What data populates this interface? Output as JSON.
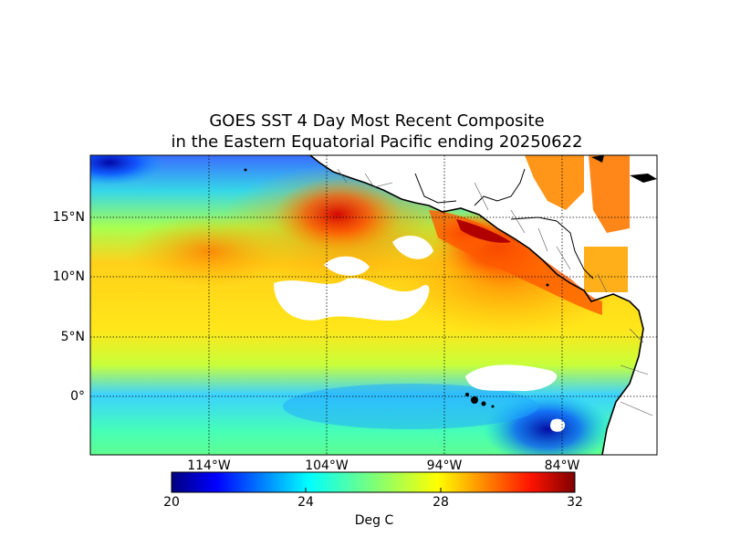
{
  "title": {
    "line1": "GOES SST 4 Day Most Recent Composite",
    "line2": "in the Eastern Equatorial Pacific ending 20250622"
  },
  "axes": {
    "lat_labels": [
      "15°N",
      "10°N",
      "5°N",
      "0°"
    ],
    "lon_labels": [
      "114°W",
      "104°W",
      "94°W",
      "84°W"
    ]
  },
  "colorbar": {
    "unit": "Deg C",
    "ticks": [
      "20",
      "24",
      "28",
      "32"
    ],
    "min": 20,
    "max": 32,
    "colormap": "jet"
  },
  "colors": {
    "land": "#ffffff",
    "no_data": "#ffffff",
    "coastline": "#000000",
    "gridline": "#000000"
  }
}
